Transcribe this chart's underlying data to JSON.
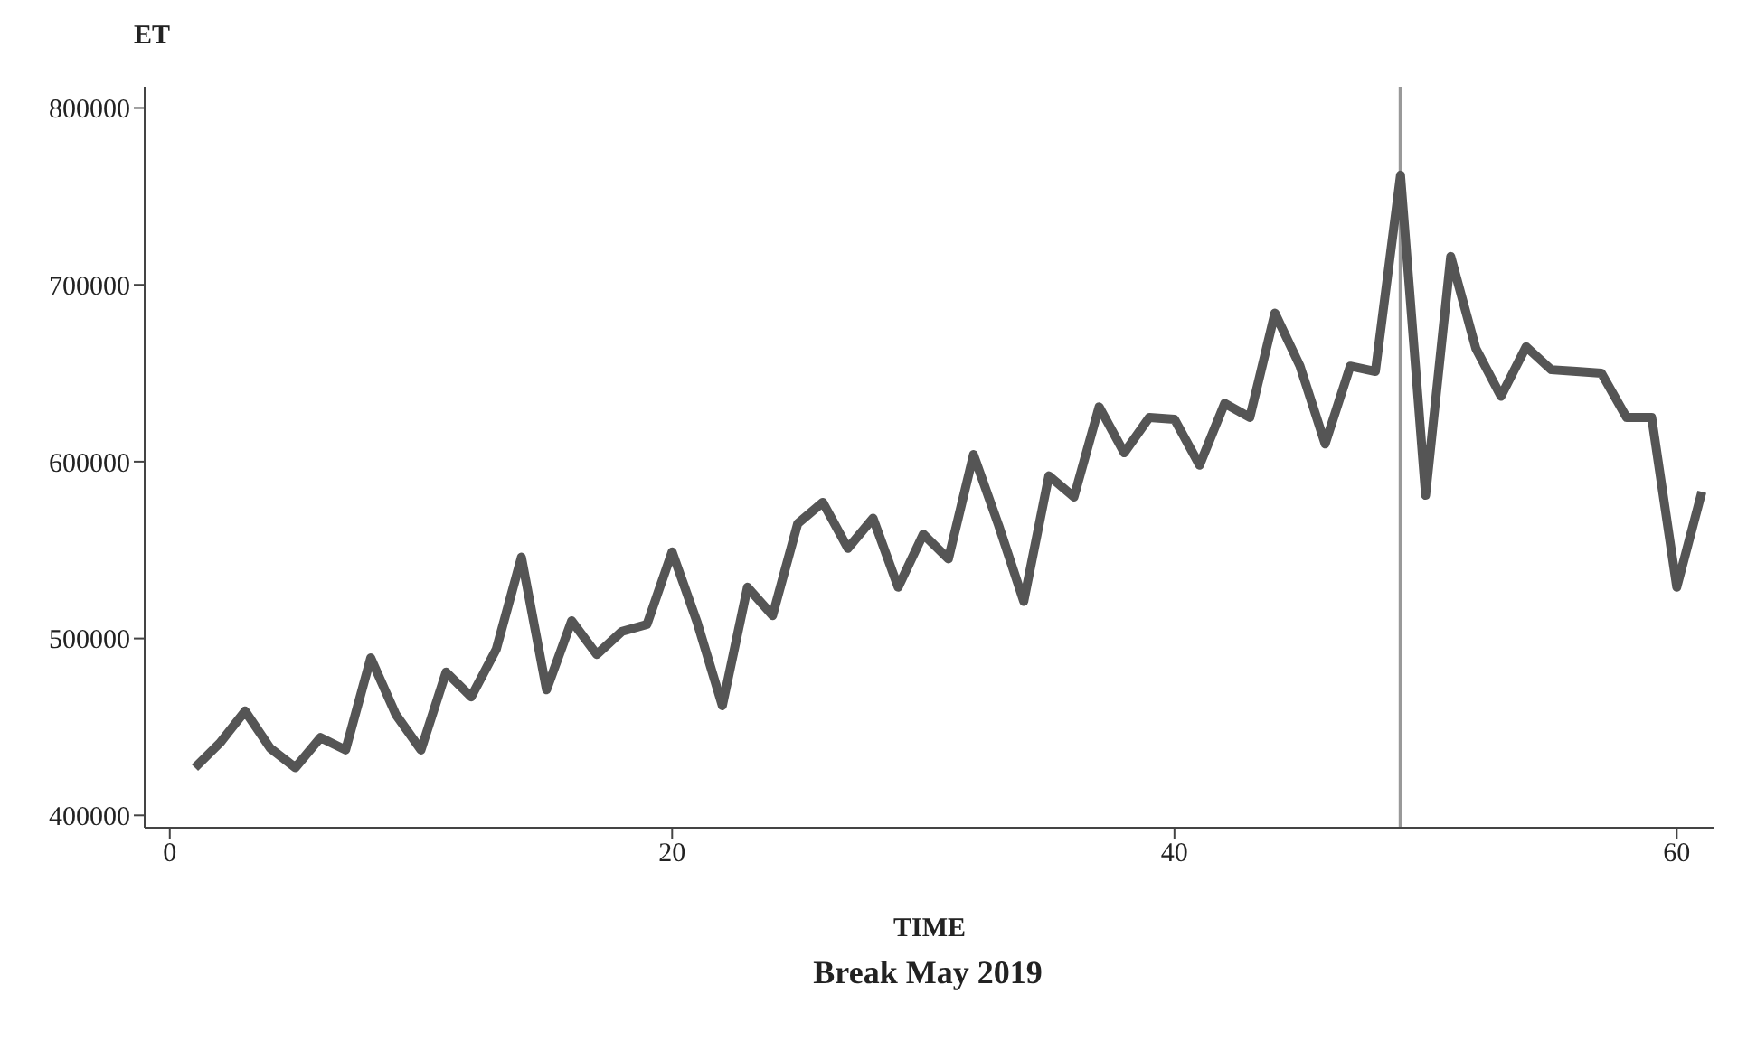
{
  "chart_data": {
    "type": "line",
    "title": "Break May 2019",
    "xlabel": "TIME",
    "ylabel": "ET",
    "x": [
      1,
      2,
      3,
      4,
      5,
      6,
      7,
      8,
      9,
      10,
      11,
      12,
      13,
      14,
      15,
      16,
      17,
      18,
      19,
      20,
      21,
      22,
      23,
      24,
      25,
      26,
      27,
      28,
      29,
      30,
      31,
      32,
      33,
      34,
      35,
      36,
      37,
      38,
      39,
      40,
      41,
      42,
      43,
      44,
      45,
      46,
      47,
      48,
      49,
      50,
      51,
      52,
      53,
      54,
      55,
      56,
      57,
      58,
      59,
      60,
      61
    ],
    "series": [
      {
        "color": "#555555",
        "values": [
          427000,
          441000,
          459000,
          438000,
          427000,
          444000,
          437000,
          489000,
          457000,
          437000,
          481000,
          467000,
          494000,
          546000,
          471000,
          510000,
          491000,
          504000,
          508000,
          549000,
          509000,
          462000,
          529000,
          513000,
          565000,
          577000,
          551000,
          568000,
          529000,
          559000,
          545000,
          604000,
          564000,
          521000,
          592000,
          580000,
          631000,
          605000,
          625000,
          624000,
          598000,
          633000,
          625000,
          684000,
          654000,
          610000,
          654000,
          651000,
          762000,
          581000,
          716000,
          664000,
          637000,
          665000,
          652000,
          651000,
          650000,
          625000,
          625000,
          529000,
          583000
        ]
      }
    ],
    "xlim": [
      -1,
      61.5
    ],
    "xticks": [
      0,
      20,
      40,
      60
    ],
    "ylim": [
      393000,
      812000
    ],
    "yticks": [
      400000,
      500000,
      600000,
      700000,
      800000
    ],
    "ref_lines": [
      {
        "axis": "x",
        "value": 49,
        "color": "#999999"
      }
    ],
    "grid": false,
    "legend": false,
    "marker": "none",
    "line_style": "solid"
  }
}
